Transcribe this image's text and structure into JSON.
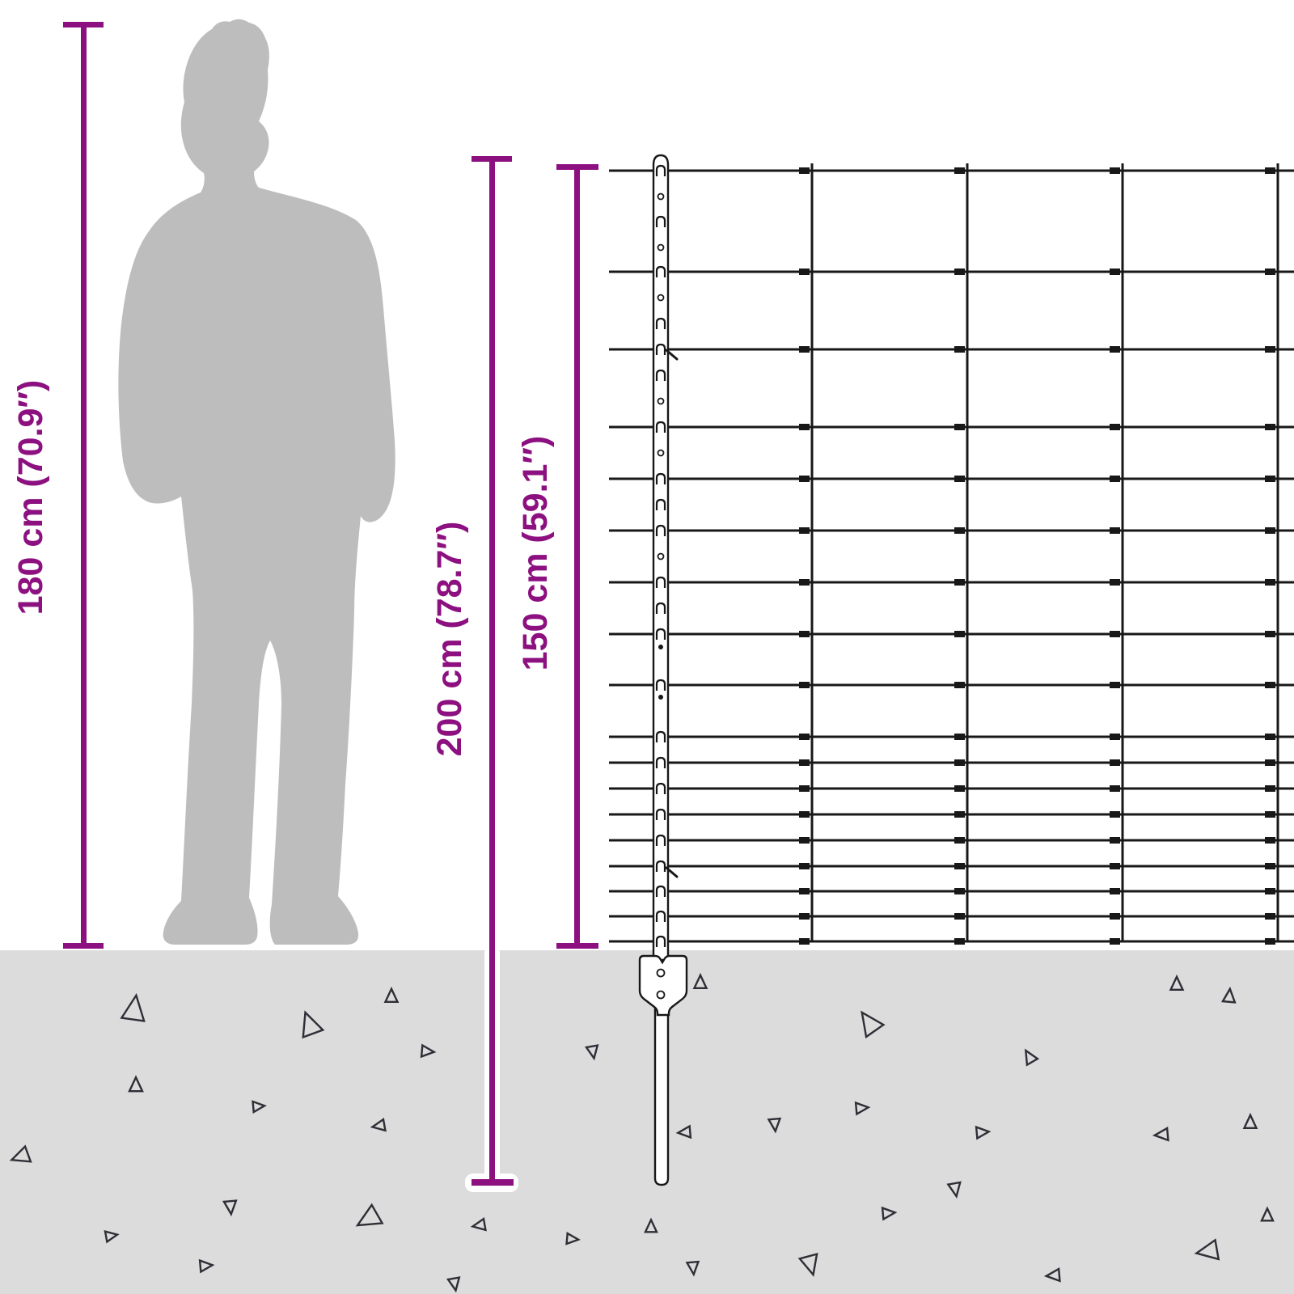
{
  "labels": {
    "person_height": "180 cm (70.9″)",
    "post_total_height": "200 cm (78.7″)",
    "fence_net_height": "150 cm (59.1″)"
  },
  "colors": {
    "accent_purple": "#8d1080",
    "ground_gray": "#dcdcdc",
    "silhouette_gray": "#bdbdbd",
    "wire_black": "#181818",
    "triangle_outline": "#2e2e36",
    "post_white": "#ffffff"
  }
}
